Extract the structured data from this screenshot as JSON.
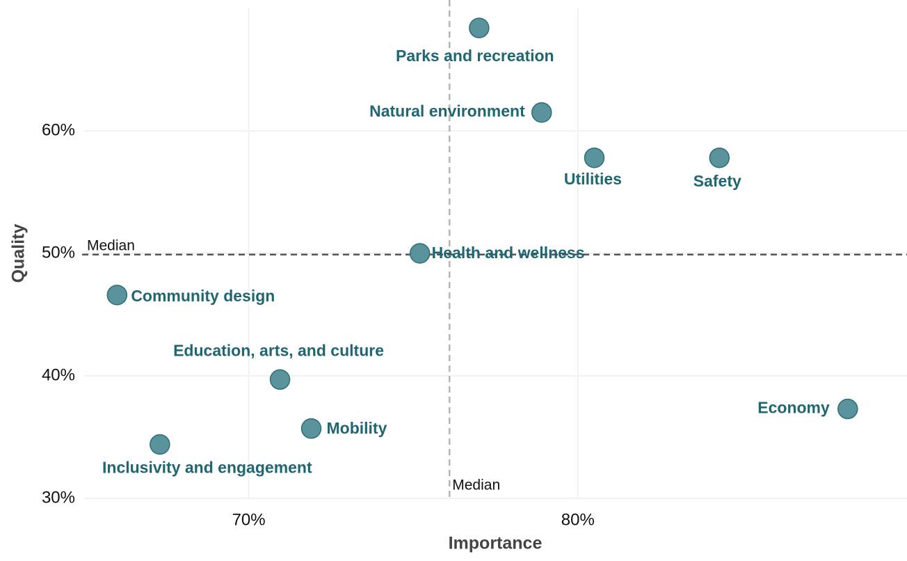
{
  "chart_data": {
    "type": "scatter",
    "x_label": "Importance",
    "y_label": "Quality",
    "xlim": [
      65,
      90
    ],
    "ylim": [
      30,
      70
    ],
    "xticks": [
      {
        "value": 70,
        "label": "70%"
      },
      {
        "value": 80,
        "label": "80%"
      }
    ],
    "yticks": [
      {
        "value": 30,
        "label": "30%"
      },
      {
        "value": 40,
        "label": "40%"
      },
      {
        "value": 50,
        "label": "50%"
      },
      {
        "value": 60,
        "label": "60%"
      }
    ],
    "grid": true,
    "series": [
      {
        "name": null,
        "color": "#5a939c",
        "edge_color": "#2a6e79",
        "label_color": "#1f6673",
        "labels": [
          "Parks and recreation",
          "Natural environment",
          "Utilities",
          "Safety",
          "Health and wellness",
          "Community design",
          "Education, arts, and culture",
          "Mobility",
          "Inclusivity and engagement",
          "Economy"
        ],
        "x": [
          77.0,
          78.9,
          80.5,
          84.3,
          75.2,
          66.0,
          70.95,
          71.9,
          67.3,
          88.2
        ],
        "values": [
          68.4,
          61.5,
          57.8,
          57.8,
          50.0,
          46.6,
          39.7,
          35.7,
          34.4,
          37.3
        ]
      }
    ],
    "reference_lines": [
      {
        "axis": "x",
        "value": 76.1,
        "label": "Median",
        "color": "#b5b5b5"
      },
      {
        "axis": "y",
        "value": 49.9,
        "label": "Median",
        "color": "#555555"
      }
    ]
  }
}
